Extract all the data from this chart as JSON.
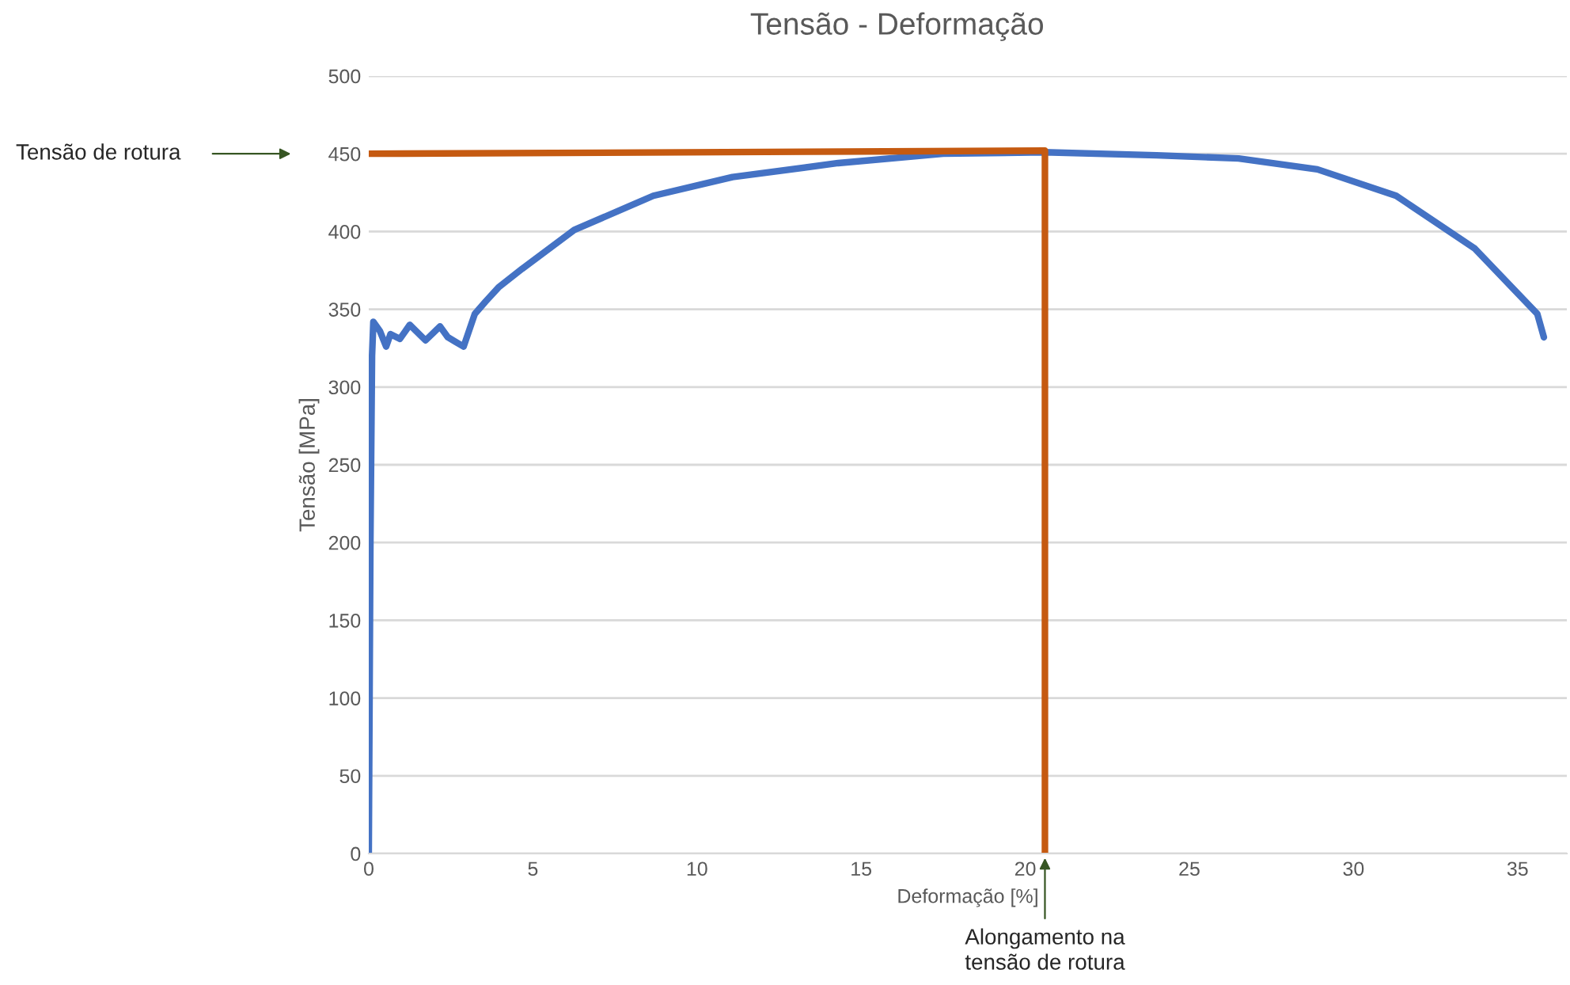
{
  "chart_data": {
    "type": "line",
    "title": "Tensão - Deformação",
    "xlabel": "Deformação [%]",
    "ylabel": "Tensão [MPa]",
    "xlim": [
      0,
      36.5
    ],
    "xticks": [
      0,
      5,
      10,
      15,
      20,
      25,
      30,
      35
    ],
    "ylim": [
      0,
      500
    ],
    "yticks": [
      0,
      50,
      100,
      150,
      200,
      250,
      300,
      350,
      400,
      450,
      500
    ],
    "grid": "y",
    "series": [
      {
        "color": "#4472c4",
        "x": [
          0,
          0.05,
          0.1,
          0.14,
          0.34,
          0.53,
          0.66,
          0.95,
          1.25,
          1.73,
          2.17,
          2.41,
          2.65,
          2.89,
          3.23,
          3.56,
          3.95,
          4.67,
          6.26,
          8.67,
          11.08,
          14.3,
          17.5,
          20.57,
          24,
          26.5,
          28.9,
          31.3,
          33.7,
          35.6,
          35.8
        ],
        "values": [
          0,
          200,
          320,
          342,
          336,
          326,
          334,
          331,
          340,
          330,
          339,
          332,
          329,
          326,
          347,
          355,
          364,
          376,
          401,
          423,
          435,
          444,
          450,
          451,
          449,
          447,
          440,
          423,
          389,
          347,
          332
        ]
      },
      {
        "color": "#c55a11",
        "x": [
          0,
          20.6,
          20.6
        ],
        "values": [
          450,
          452,
          0
        ]
      }
    ],
    "annotations": [
      "Tensão de rotura",
      {
        "text": "Alongamento na\ntensão de rotura",
        "x": 20.6,
        "y": 0
      }
    ]
  }
}
